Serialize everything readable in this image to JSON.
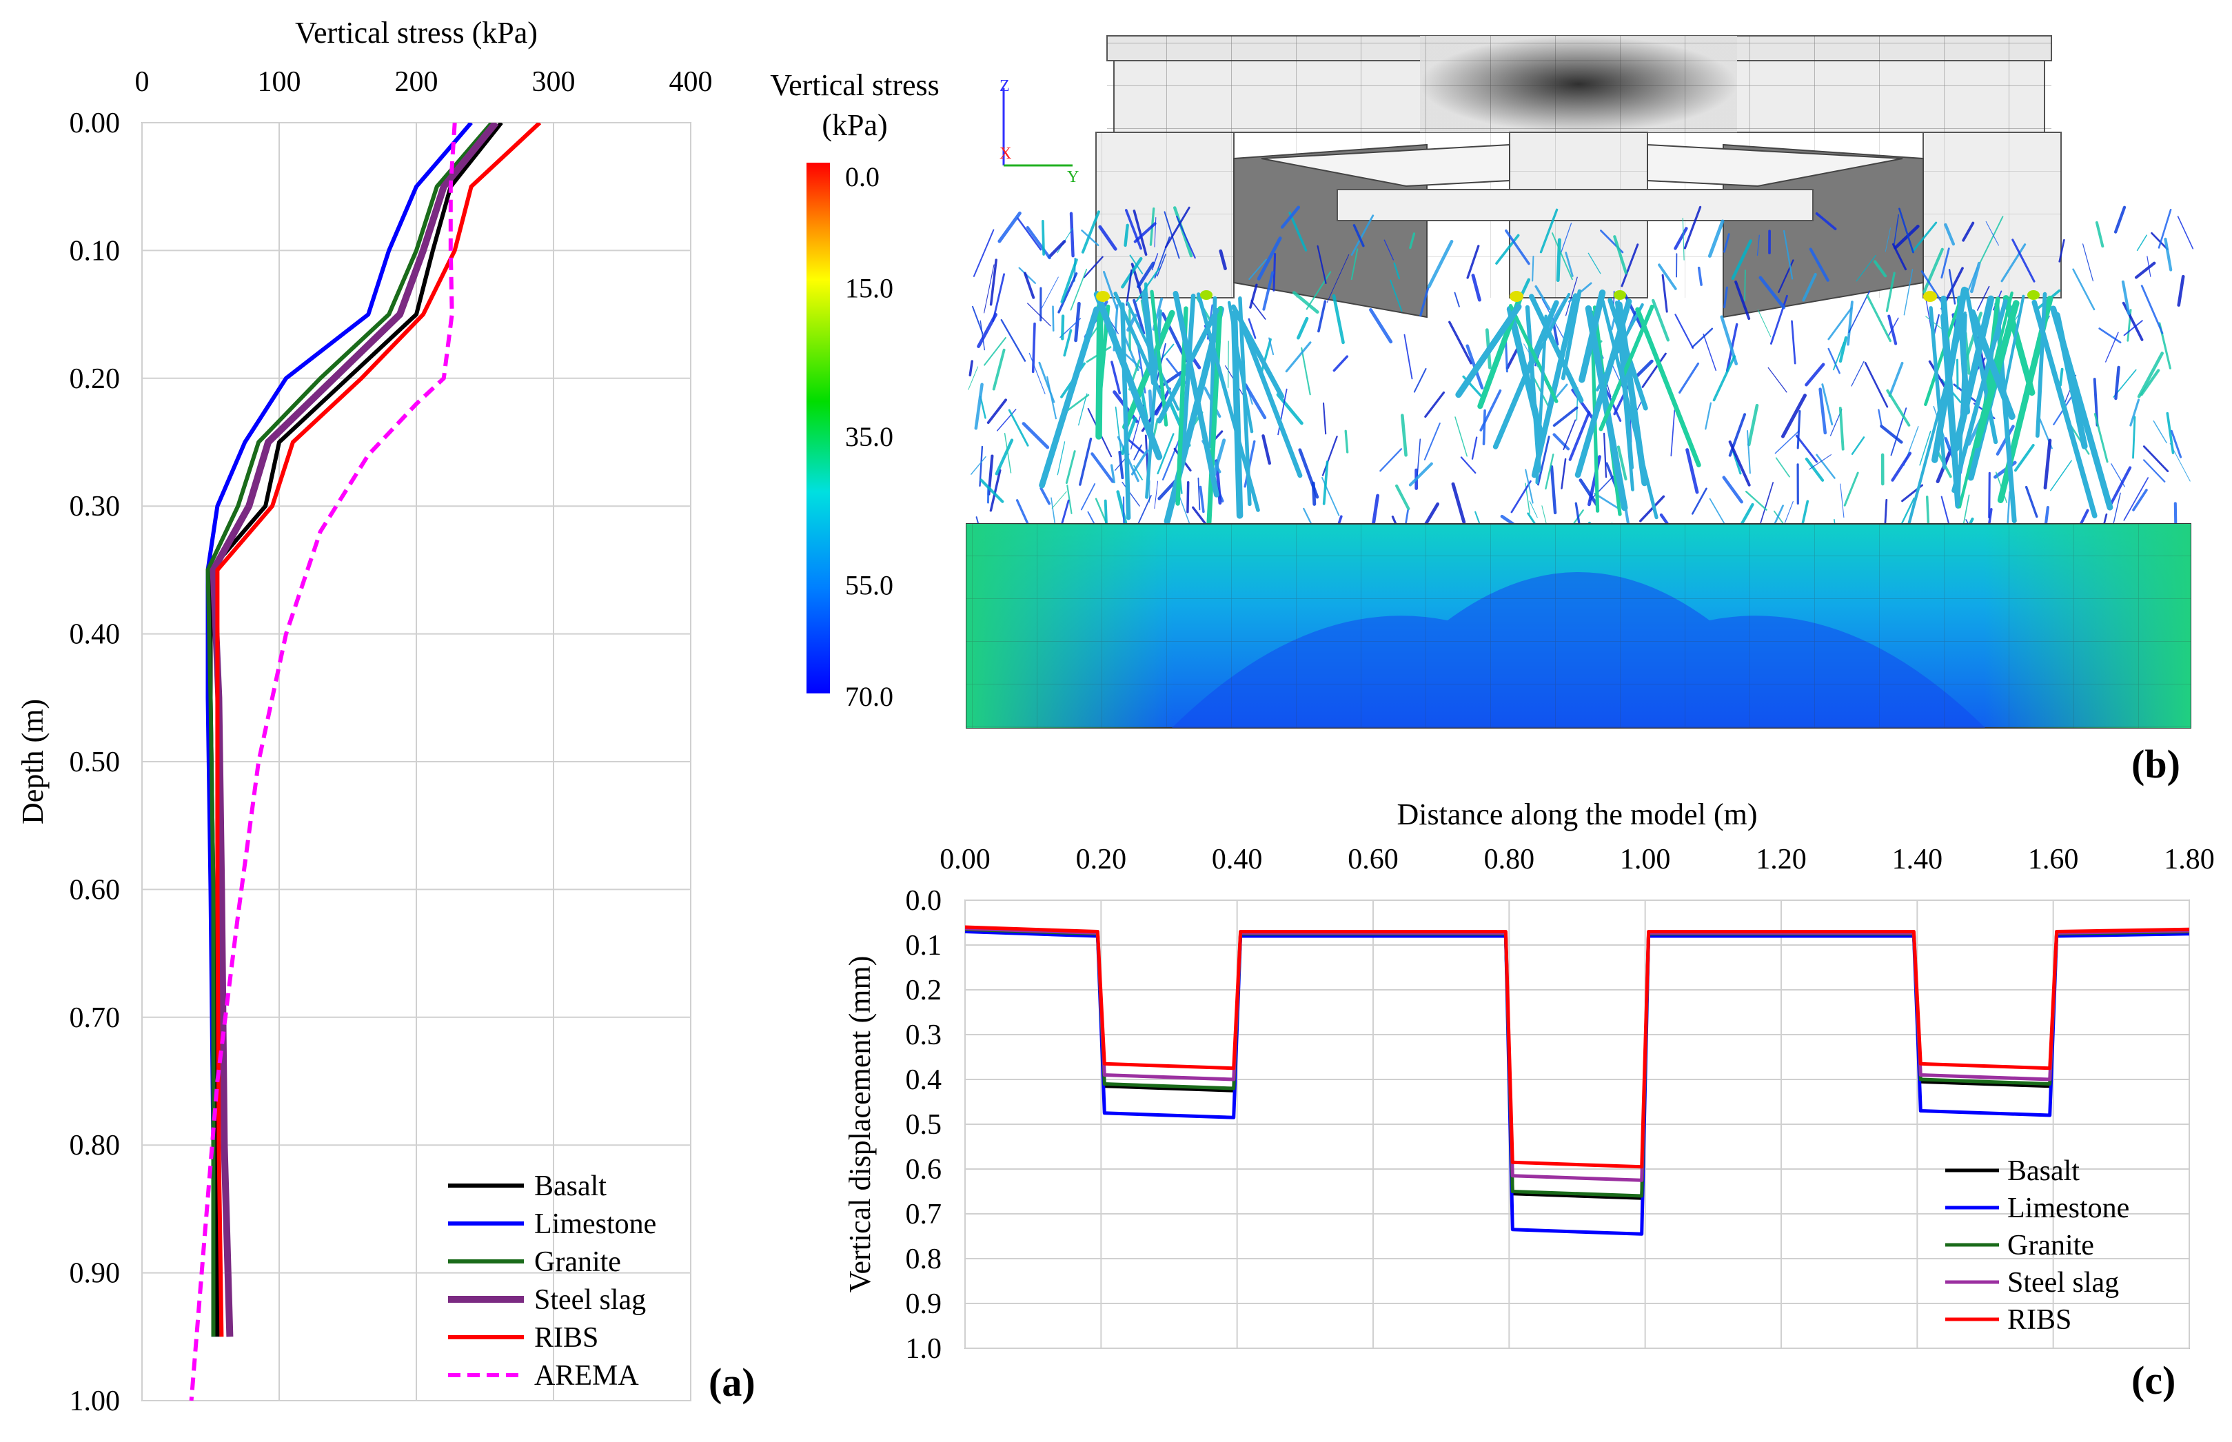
{
  "chart_data": [
    {
      "panel": "(a)",
      "type": "line",
      "title": "",
      "xlabel": "Vertical stress (kPa)",
      "ylabel": "Depth (m)",
      "xlim": [
        0,
        400
      ],
      "ylim": [
        0,
        1.0
      ],
      "x_ticks": [
        "0",
        "100",
        "200",
        "300",
        "400"
      ],
      "y_ticks": [
        "0.00",
        "0.10",
        "0.20",
        "0.30",
        "0.40",
        "0.50",
        "0.60",
        "0.70",
        "0.80",
        "0.90",
        "1.00"
      ],
      "grid": true,
      "legend_position": "bottom-right",
      "series": [
        {
          "name": "Basalt",
          "color": "#000000",
          "dash": false,
          "points": [
            [
              262,
              0.0
            ],
            [
              225,
              0.05
            ],
            [
              212,
              0.1
            ],
            [
              200,
              0.15
            ],
            [
              150,
              0.2
            ],
            [
              100,
              0.25
            ],
            [
              90,
              0.3
            ],
            [
              50,
              0.35
            ],
            [
              50,
              0.45
            ],
            [
              52,
              0.6
            ],
            [
              55,
              0.8
            ],
            [
              55,
              0.95
            ]
          ]
        },
        {
          "name": "Limestone",
          "color": "#0000ff",
          "dash": false,
          "points": [
            [
              240,
              0.0
            ],
            [
              200,
              0.05
            ],
            [
              180,
              0.1
            ],
            [
              165,
              0.15
            ],
            [
              105,
              0.2
            ],
            [
              75,
              0.25
            ],
            [
              55,
              0.3
            ],
            [
              48,
              0.35
            ],
            [
              48,
              0.45
            ],
            [
              50,
              0.6
            ],
            [
              52,
              0.8
            ],
            [
              52,
              0.95
            ]
          ]
        },
        {
          "name": "Granite",
          "color": "#1a6b1a",
          "dash": false,
          "points": [
            [
              255,
              0.0
            ],
            [
              215,
              0.05
            ],
            [
              200,
              0.1
            ],
            [
              180,
              0.15
            ],
            [
              130,
              0.2
            ],
            [
              85,
              0.25
            ],
            [
              70,
              0.3
            ],
            [
              48,
              0.35
            ],
            [
              50,
              0.45
            ],
            [
              52,
              0.6
            ],
            [
              52,
              0.8
            ],
            [
              52,
              0.95
            ]
          ]
        },
        {
          "name": "Steel slag",
          "color": "#7b2a82",
          "dash": false,
          "points": [
            [
              258,
              0.0
            ],
            [
              220,
              0.05
            ],
            [
              205,
              0.1
            ],
            [
              188,
              0.15
            ],
            [
              140,
              0.2
            ],
            [
              92,
              0.25
            ],
            [
              78,
              0.3
            ],
            [
              52,
              0.35
            ],
            [
              56,
              0.45
            ],
            [
              58,
              0.6
            ],
            [
              60,
              0.8
            ],
            [
              64,
              0.95
            ]
          ]
        },
        {
          "name": "RIBS",
          "color": "#ff0000",
          "dash": false,
          "points": [
            [
              290,
              0.0
            ],
            [
              240,
              0.05
            ],
            [
              228,
              0.1
            ],
            [
              205,
              0.15
            ],
            [
              160,
              0.2
            ],
            [
              110,
              0.25
            ],
            [
              95,
              0.3
            ],
            [
              55,
              0.35
            ],
            [
              55,
              0.45
            ],
            [
              55,
              0.6
            ],
            [
              56,
              0.8
            ],
            [
              58,
              0.95
            ]
          ]
        },
        {
          "name": "AREMA",
          "color": "#ff00ff",
          "dash": true,
          "points": [
            [
              228,
              0.0
            ],
            [
              225,
              0.05
            ],
            [
              225,
              0.1
            ],
            [
              226,
              0.15
            ],
            [
              220,
              0.2
            ],
            [
              200,
              0.22
            ],
            [
              165,
              0.26
            ],
            [
              130,
              0.32
            ],
            [
              105,
              0.4
            ],
            [
              85,
              0.5
            ],
            [
              70,
              0.62
            ],
            [
              55,
              0.75
            ],
            [
              45,
              0.88
            ],
            [
              36,
              1.0
            ]
          ]
        }
      ]
    },
    {
      "panel": "(b)",
      "type": "heatmap",
      "title": "Vertical stress (kPa)",
      "colorbar_title": "Vertical stress",
      "colorbar_units": "(kPa)",
      "colorbar_ticks": [
        "0.0",
        "15.0",
        "35.0",
        "55.0",
        "70.0"
      ],
      "colorbar_values": [
        0,
        15,
        35,
        55,
        70
      ],
      "colors": [
        "#ff0000",
        "#ffb000",
        "#ffff00",
        "#00dd00",
        "#00e0e0",
        "#0080ff",
        "#0000ff"
      ],
      "axis_labels": [
        "Z",
        "X",
        "Y"
      ]
    },
    {
      "panel": "(c)",
      "type": "line",
      "title": "",
      "xlabel": "Distance along the model (m)",
      "ylabel": "Vertical displacement (mm)",
      "xlim": [
        0,
        1.8
      ],
      "ylim": [
        0,
        1.0
      ],
      "x_ticks": [
        "0.00",
        "0.20",
        "0.40",
        "0.60",
        "0.80",
        "1.00",
        "1.20",
        "1.40",
        "1.60",
        "1.80"
      ],
      "y_ticks": [
        "0.0",
        "0.1",
        "0.2",
        "0.3",
        "0.4",
        "0.5",
        "0.6",
        "0.7",
        "0.8",
        "0.9",
        "1.0"
      ],
      "grid": true,
      "legend_position": "bottom-right",
      "series": [
        {
          "name": "Basalt",
          "color": "#000000",
          "levels": {
            "base": 0.065,
            "s1": 0.42,
            "s2": 0.66,
            "s3": 0.41
          }
        },
        {
          "name": "Limestone",
          "color": "#0000ff",
          "levels": {
            "base": 0.07,
            "s1": 0.48,
            "s2": 0.74,
            "s3": 0.475
          }
        },
        {
          "name": "Granite",
          "color": "#1a6b1a",
          "levels": {
            "base": 0.065,
            "s1": 0.415,
            "s2": 0.655,
            "s3": 0.405
          }
        },
        {
          "name": "Steel slag",
          "color": "#9b30a0",
          "levels": {
            "base": 0.063,
            "s1": 0.395,
            "s2": 0.62,
            "s3": 0.395
          }
        },
        {
          "name": "RIBS",
          "color": "#ff0000",
          "levels": {
            "base": 0.06,
            "s1": 0.37,
            "s2": 0.59,
            "s3": 0.37
          }
        }
      ],
      "support_segments": [
        [
          0.2,
          0.4
        ],
        [
          0.8,
          1.0
        ],
        [
          1.4,
          1.6
        ]
      ]
    }
  ],
  "panel_labels": {
    "a": "(a)",
    "b": "(b)",
    "c": "(c)"
  }
}
